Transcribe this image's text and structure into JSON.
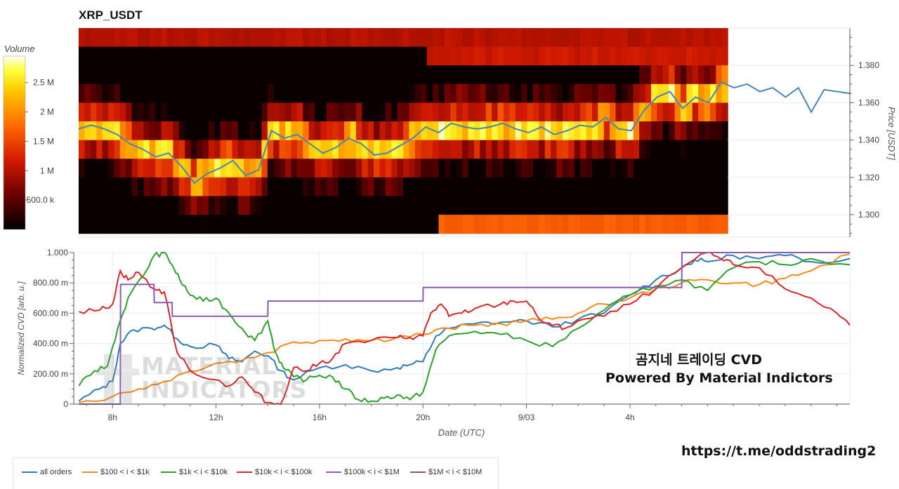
{
  "title": "XRP_USDT",
  "colorbar": {
    "label": "Volume",
    "ticks": [
      {
        "label": "2.5 M",
        "value": 2500000
      },
      {
        "label": "2 M",
        "value": 2000000
      },
      {
        "label": "1.5 M",
        "value": 1500000
      },
      {
        "label": "1 M",
        "value": 1000000
      },
      {
        "label": "500.0 k",
        "value": 500000
      }
    ],
    "min": 0,
    "max": 2950000
  },
  "watermark": {
    "line1": "곰지네 트레이딩 CVD",
    "line2": "Powered By Material Indictors"
  },
  "footer_link": "https://t.me/oddstrading2",
  "logo_text": {
    "line1": "MATERIAL",
    "line2": "INDICATORS"
  },
  "colors": {
    "all_orders": "#2e7bb4",
    "bin_100_1k": "#f28a1a",
    "bin_1k_10k": "#2ca02c",
    "bin_10k_100k": "#d62728",
    "bin_100k_1m": "#8a5cb8",
    "bin_1m_10m": "#8c564b",
    "price_line": "#4a84b5"
  },
  "chart_data": [
    {
      "type": "heatmap",
      "title": "XRP_USDT",
      "ylabel": "Price [USDT]",
      "ylim": [
        1.288,
        1.4
      ],
      "yticks": [
        1.3,
        1.32,
        1.34,
        1.36,
        1.38
      ],
      "ytick_labels": [
        "1.300",
        "1.320",
        "1.340",
        "1.360",
        "1.380"
      ],
      "xlim": [
        6.5,
        36.5
      ],
      "heat_x_end": 31.75,
      "price_bins": [
        1.395,
        1.385,
        1.375,
        1.365,
        1.355,
        1.345,
        1.335,
        1.325,
        1.315,
        1.305,
        1.295,
        1.288
      ],
      "price_series": {
        "x": [
          6.5,
          7.0,
          7.5,
          8.0,
          8.5,
          9.0,
          9.5,
          10.0,
          10.5,
          11.0,
          11.5,
          12.0,
          12.5,
          13.0,
          13.5,
          14.0,
          14.5,
          15.0,
          15.5,
          16.0,
          16.5,
          17.0,
          17.5,
          18.0,
          18.5,
          19.0,
          19.5,
          20.0,
          20.5,
          21.0,
          21.5,
          22.0,
          22.5,
          23.0,
          23.5,
          24.0,
          24.5,
          25.0,
          25.5,
          26.0,
          26.5,
          27.0,
          27.5,
          28.0,
          28.5,
          29.0,
          29.5,
          30.0,
          30.5,
          31.0,
          31.5,
          32.0,
          32.5,
          33.0,
          33.5,
          34.0,
          34.5,
          35.0,
          35.5,
          36.0,
          36.5
        ],
        "y": [
          1.346,
          1.348,
          1.346,
          1.343,
          1.338,
          1.335,
          1.331,
          1.333,
          1.326,
          1.317,
          1.322,
          1.325,
          1.329,
          1.321,
          1.324,
          1.345,
          1.341,
          1.343,
          1.338,
          1.333,
          1.336,
          1.341,
          1.338,
          1.332,
          1.333,
          1.337,
          1.341,
          1.347,
          1.344,
          1.349,
          1.347,
          1.346,
          1.347,
          1.349,
          1.346,
          1.344,
          1.347,
          1.343,
          1.345,
          1.348,
          1.347,
          1.352,
          1.346,
          1.345,
          1.356,
          1.363,
          1.366,
          1.357,
          1.363,
          1.36,
          1.371,
          1.368,
          1.37,
          1.366,
          1.368,
          1.363,
          1.368,
          1.355,
          1.367,
          1.366,
          1.365
        ]
      }
    },
    {
      "type": "line",
      "xlabel": "Date (UTC)",
      "ylabel": "Normalized CVD [arb. u.]",
      "ylim": [
        0,
        1
      ],
      "yticks": [
        0,
        0.2,
        0.4,
        0.6,
        0.8,
        1.0
      ],
      "ytick_labels": [
        "0",
        "200.00 m",
        "400.00 m",
        "600.00 m",
        "800.00 m",
        "1.000"
      ],
      "xlim": [
        6.5,
        36.5
      ],
      "xticks": [
        8,
        12,
        16,
        20,
        24,
        28
      ],
      "xtick_labels": [
        "8h",
        "12h",
        "16h",
        "20h",
        "9/03",
        "4h"
      ],
      "series": [
        {
          "name": "all orders",
          "key": "all_orders",
          "x": [
            6.7,
            7.5,
            8.0,
            8.3,
            8.8,
            9.5,
            10.0,
            10.5,
            11.0,
            12.0,
            12.5,
            13.0,
            13.5,
            14.0,
            14.5,
            15.0,
            16.0,
            17.0,
            18.0,
            19.0,
            19.5,
            20.0,
            20.5,
            21.0,
            22.0,
            23.0,
            24.0,
            25.0,
            26.0,
            27.0,
            28.0,
            29.0,
            30.0,
            30.5,
            31.0,
            32.0,
            33.0,
            34.0,
            35.0,
            36.5
          ],
          "y": [
            0.02,
            0.1,
            0.15,
            0.4,
            0.49,
            0.5,
            0.52,
            0.43,
            0.38,
            0.39,
            0.3,
            0.28,
            0.35,
            0.32,
            0.22,
            0.16,
            0.24,
            0.26,
            0.22,
            0.24,
            0.26,
            0.28,
            0.45,
            0.5,
            0.53,
            0.54,
            0.55,
            0.51,
            0.56,
            0.6,
            0.72,
            0.82,
            0.9,
            0.95,
            0.94,
            0.98,
            0.96,
            0.98,
            0.94,
            0.96
          ]
        },
        {
          "name": "$100 < i < $1k",
          "key": "bin_100_1k",
          "x": [
            6.7,
            8.0,
            9.0,
            10.0,
            11.0,
            12.0,
            13.0,
            14.0,
            15.0,
            16.0,
            17.0,
            18.0,
            19.0,
            20.0,
            21.0,
            22.0,
            23.0,
            24.0,
            25.0,
            26.0,
            27.0,
            28.0,
            29.0,
            30.0,
            31.0,
            32.0,
            33.0,
            34.0,
            35.0,
            36.5
          ],
          "y": [
            0.01,
            0.05,
            0.1,
            0.15,
            0.22,
            0.27,
            0.29,
            0.34,
            0.41,
            0.42,
            0.43,
            0.42,
            0.44,
            0.46,
            0.5,
            0.52,
            0.53,
            0.55,
            0.56,
            0.6,
            0.66,
            0.7,
            0.76,
            0.8,
            0.82,
            0.8,
            0.79,
            0.83,
            0.88,
            0.99
          ]
        },
        {
          "name": "$1k < i < $10k",
          "key": "bin_1k_10k",
          "x": [
            6.7,
            7.3,
            7.8,
            8.2,
            8.6,
            9.2,
            9.6,
            10.0,
            10.3,
            10.6,
            11.0,
            11.5,
            12.0,
            12.5,
            13.0,
            13.5,
            14.0,
            14.3,
            14.6,
            15.0,
            15.5,
            16.0,
            16.5,
            17.0,
            17.5,
            18.0,
            18.5,
            19.0,
            19.5,
            20.0,
            20.5,
            21.0,
            22.0,
            23.0,
            24.0,
            25.0,
            26.0,
            27.0,
            28.0,
            29.0,
            30.0,
            31.0,
            32.0,
            33.0,
            34.0,
            35.0,
            36.5
          ],
          "y": [
            0.12,
            0.22,
            0.25,
            0.5,
            0.7,
            0.85,
            0.98,
            1.0,
            0.92,
            0.82,
            0.72,
            0.68,
            0.7,
            0.6,
            0.5,
            0.42,
            0.55,
            0.34,
            0.24,
            0.18,
            0.16,
            0.19,
            0.18,
            0.1,
            0.03,
            0.02,
            0.04,
            0.06,
            0.03,
            0.08,
            0.36,
            0.45,
            0.48,
            0.46,
            0.42,
            0.38,
            0.5,
            0.62,
            0.72,
            0.78,
            0.82,
            0.75,
            0.9,
            0.94,
            0.92,
            0.96,
            0.92
          ]
        },
        {
          "name": "$10k < i < $100k",
          "key": "bin_10k_100k",
          "x": [
            6.7,
            7.5,
            8.0,
            8.3,
            8.6,
            9.0,
            9.6,
            10.0,
            10.5,
            11.0,
            12.0,
            12.5,
            13.0,
            13.5,
            14.0,
            14.5,
            15.0,
            15.5,
            16.0,
            16.5,
            17.0,
            18.0,
            19.0,
            19.5,
            20.0,
            20.3,
            20.7,
            21.0,
            21.5,
            22.0,
            23.0,
            23.5,
            24.0,
            24.5,
            25.0,
            25.5,
            26.0,
            27.0,
            28.0,
            29.0,
            30.0,
            31.0,
            31.5,
            32.0,
            33.0,
            34.0,
            35.0,
            36.0,
            36.5
          ],
          "y": [
            0.61,
            0.62,
            0.66,
            0.88,
            0.82,
            0.87,
            0.76,
            0.74,
            0.34,
            0.22,
            0.16,
            0.12,
            0.18,
            0.08,
            0.01,
            0.0,
            0.24,
            0.22,
            0.27,
            0.3,
            0.4,
            0.42,
            0.44,
            0.44,
            0.45,
            0.6,
            0.66,
            0.58,
            0.6,
            0.63,
            0.66,
            0.68,
            0.68,
            0.56,
            0.52,
            0.5,
            0.55,
            0.58,
            0.66,
            0.76,
            0.9,
            1.0,
            0.96,
            0.92,
            0.9,
            0.76,
            0.7,
            0.6,
            0.52
          ]
        },
        {
          "name": "$100k < i < $1M",
          "key": "bin_100k_1m",
          "x": [
            6.7,
            8.3,
            8.31,
            9.6,
            9.61,
            10.3,
            10.31,
            14.0,
            14.01,
            20.0,
            20.01,
            30.0,
            30.01,
            36.5
          ],
          "y": [
            0.0,
            0.0,
            0.79,
            0.79,
            0.67,
            0.67,
            0.58,
            0.58,
            0.68,
            0.68,
            0.77,
            0.77,
            1.0,
            1.0
          ]
        },
        {
          "name": "$1M < i < $10M",
          "key": "bin_1m_10m",
          "x": [],
          "y": []
        }
      ]
    }
  ]
}
